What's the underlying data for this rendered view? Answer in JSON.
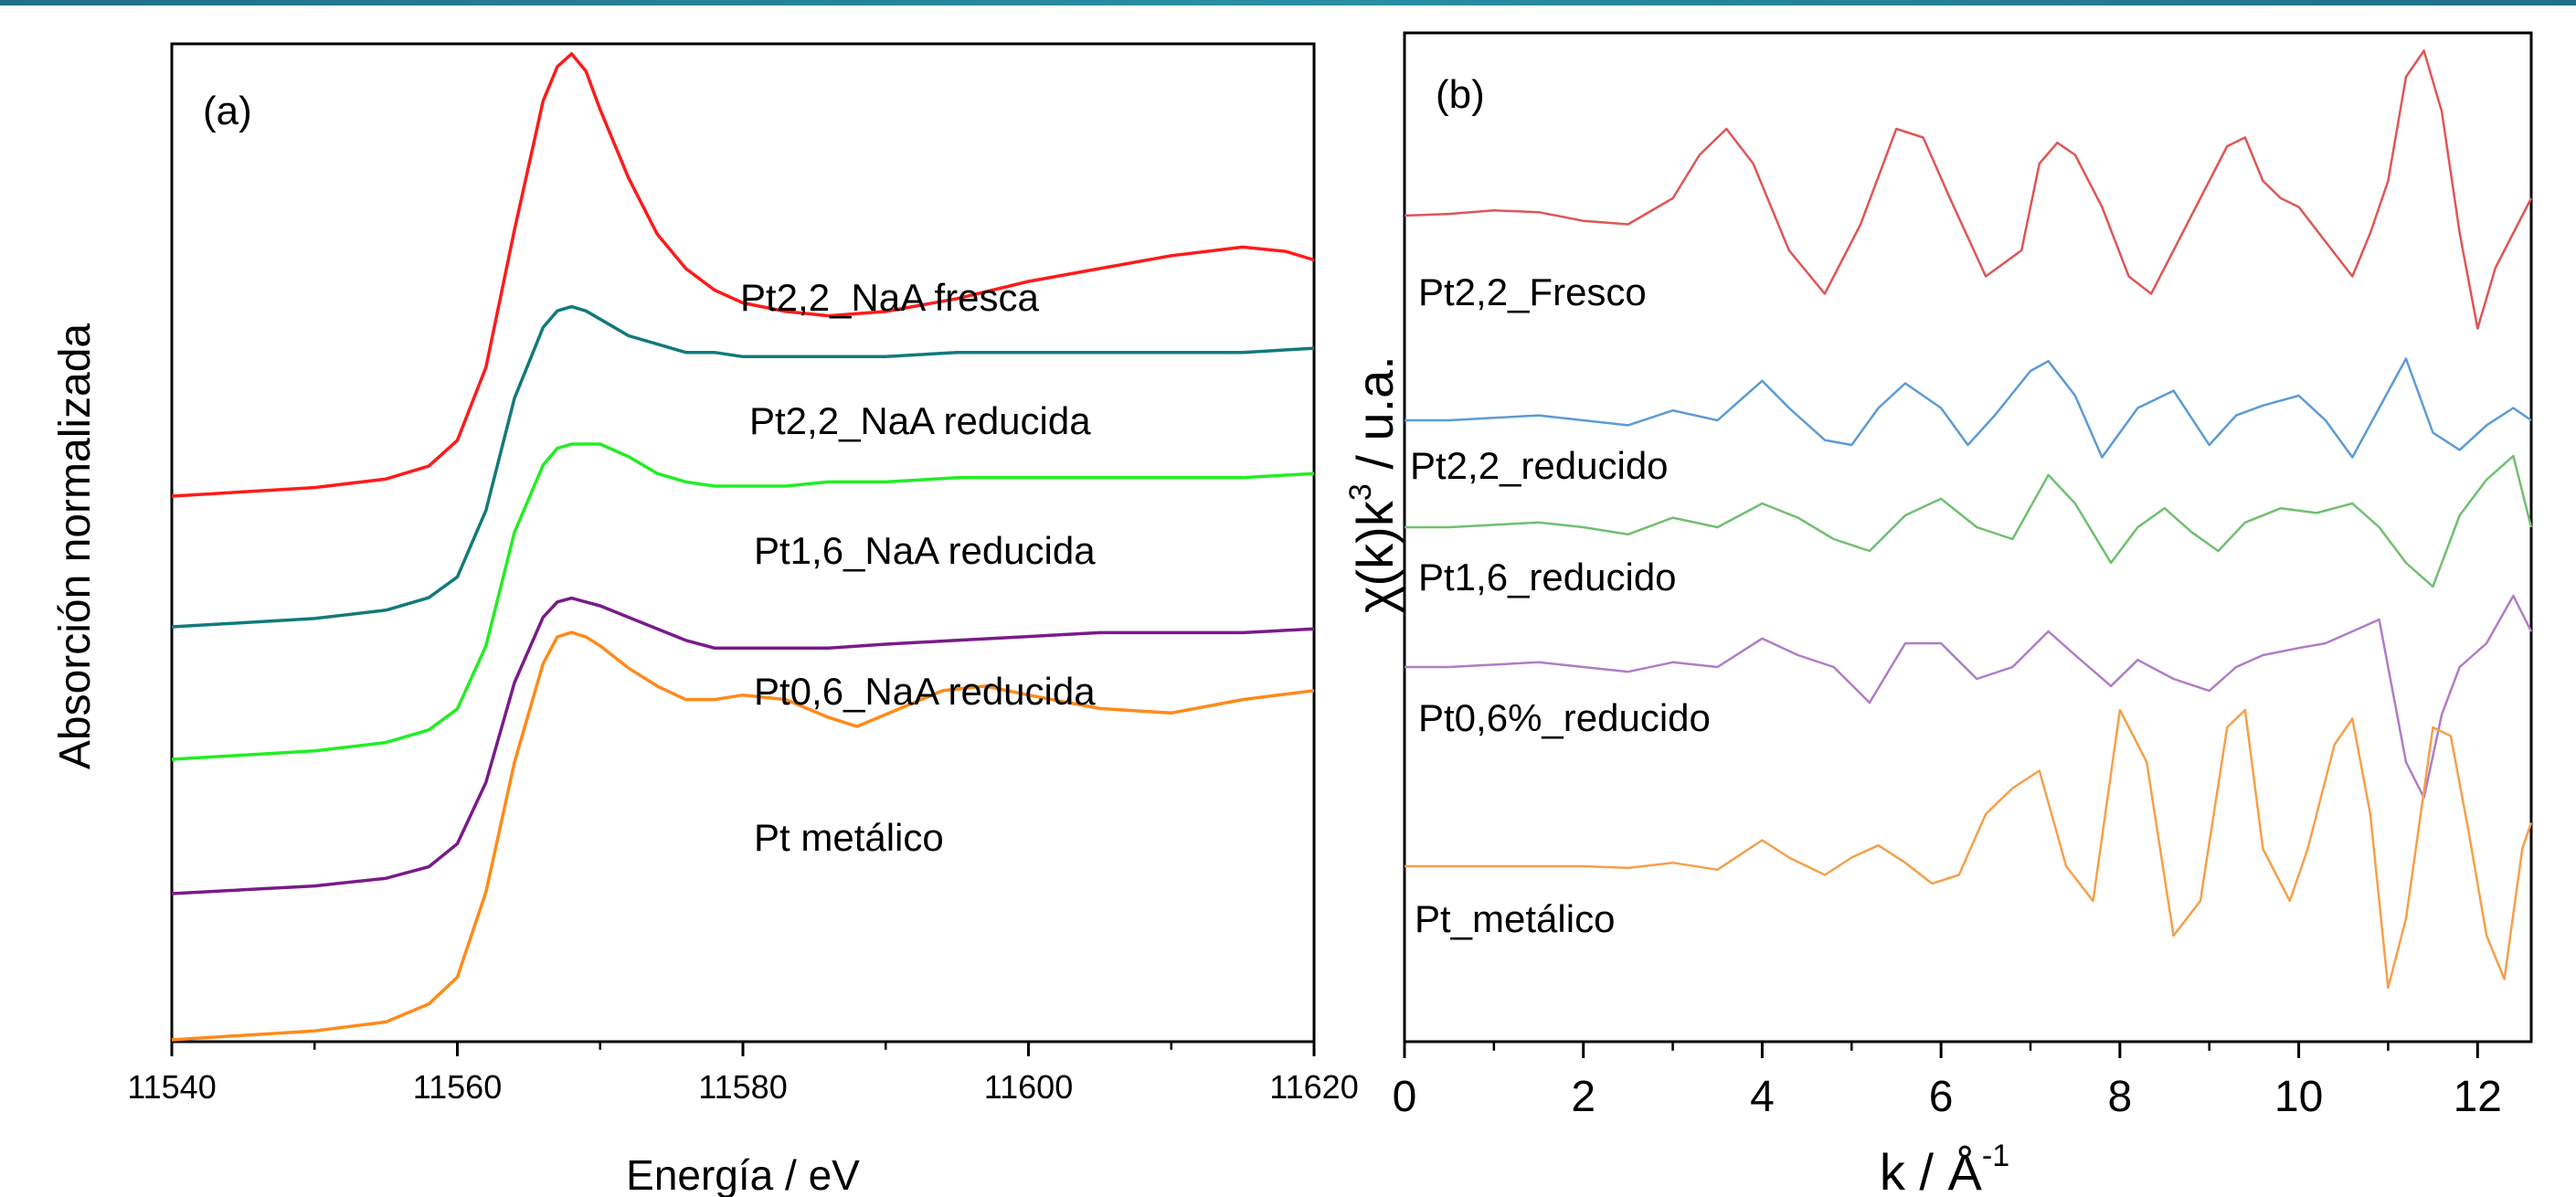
{
  "chart_data": [
    {
      "panel": "(a)",
      "type": "line",
      "xlabel": "Energía / eV",
      "ylabel": "Absorción normalizada",
      "xlim": [
        11540,
        11620
      ],
      "xticks": [
        11540,
        11560,
        11580,
        11600,
        11620
      ],
      "yticks_shown": false,
      "grid": false,
      "series": [
        {
          "name": "Pt2,2_NaA fresca",
          "color": "#ff1a1a",
          "x": [
            11540,
            11545,
            11550,
            11555,
            11558,
            11560,
            11562,
            11564,
            11566,
            11567,
            11568,
            11569,
            11570,
            11572,
            11574,
            11576,
            11578,
            11580,
            11583,
            11586,
            11590,
            11595,
            11600,
            11605,
            11610,
            11615,
            11618,
            11620
          ],
          "y": [
            0.0,
            0.01,
            0.02,
            0.04,
            0.07,
            0.13,
            0.3,
            0.62,
            0.92,
            1.0,
            1.03,
            0.99,
            0.9,
            0.74,
            0.61,
            0.53,
            0.48,
            0.45,
            0.43,
            0.42,
            0.43,
            0.46,
            0.5,
            0.53,
            0.56,
            0.58,
            0.57,
            0.55
          ]
        },
        {
          "name": "Pt2,2_NaA reducida",
          "color": "#127a7a",
          "x": [
            11540,
            11545,
            11550,
            11555,
            11558,
            11560,
            11562,
            11564,
            11566,
            11567,
            11568,
            11569,
            11570,
            11572,
            11574,
            11576,
            11578,
            11580,
            11583,
            11586,
            11590,
            11595,
            11600,
            11605,
            11610,
            11615,
            11620
          ],
          "y": [
            0.0,
            0.01,
            0.02,
            0.04,
            0.07,
            0.12,
            0.28,
            0.55,
            0.72,
            0.76,
            0.77,
            0.76,
            0.74,
            0.7,
            0.68,
            0.66,
            0.66,
            0.65,
            0.65,
            0.65,
            0.65,
            0.66,
            0.66,
            0.66,
            0.66,
            0.66,
            0.67
          ]
        },
        {
          "name": "Pt1,6_NaA reducida",
          "color": "#22ee22",
          "x": [
            11540,
            11545,
            11550,
            11555,
            11558,
            11560,
            11562,
            11564,
            11566,
            11567,
            11568,
            11569,
            11570,
            11572,
            11574,
            11576,
            11578,
            11580,
            11583,
            11586,
            11590,
            11595,
            11600,
            11605,
            11610,
            11615,
            11620
          ],
          "y": [
            0.0,
            0.01,
            0.02,
            0.04,
            0.07,
            0.12,
            0.27,
            0.54,
            0.7,
            0.74,
            0.75,
            0.75,
            0.75,
            0.72,
            0.68,
            0.66,
            0.65,
            0.65,
            0.65,
            0.66,
            0.66,
            0.67,
            0.67,
            0.67,
            0.67,
            0.67,
            0.68
          ]
        },
        {
          "name": "Pt0,6_NaA reducida",
          "color": "#7a1a8a",
          "x": [
            11540,
            11545,
            11550,
            11555,
            11558,
            11560,
            11562,
            11564,
            11566,
            11567,
            11568,
            11569,
            11570,
            11572,
            11574,
            11576,
            11578,
            11580,
            11583,
            11586,
            11590,
            11595,
            11600,
            11605,
            11610,
            11615,
            11620
          ],
          "y": [
            0.0,
            0.01,
            0.02,
            0.04,
            0.07,
            0.13,
            0.29,
            0.55,
            0.72,
            0.76,
            0.77,
            0.76,
            0.75,
            0.72,
            0.69,
            0.66,
            0.64,
            0.64,
            0.64,
            0.64,
            0.65,
            0.66,
            0.67,
            0.68,
            0.68,
            0.68,
            0.69
          ]
        },
        {
          "name": "Pt metálico",
          "color": "#ff8a1a",
          "x": [
            11540,
            11545,
            11550,
            11555,
            11558,
            11560,
            11562,
            11564,
            11566,
            11567,
            11568,
            11569,
            11570,
            11572,
            11574,
            11576,
            11578,
            11580,
            11583,
            11586,
            11588,
            11591,
            11594,
            11597,
            11600,
            11605,
            11610,
            11615,
            11620
          ],
          "y": [
            0.0,
            0.01,
            0.02,
            0.04,
            0.08,
            0.14,
            0.33,
            0.62,
            0.84,
            0.9,
            0.91,
            0.9,
            0.88,
            0.83,
            0.79,
            0.76,
            0.76,
            0.77,
            0.76,
            0.72,
            0.7,
            0.74,
            0.78,
            0.79,
            0.77,
            0.74,
            0.73,
            0.76,
            0.78
          ]
        }
      ]
    },
    {
      "panel": "(b)",
      "type": "line",
      "xlabel": "k / Å",
      "xlabel_superscript": "-1",
      "ylabel": "χ(k)k",
      "ylabel_superscript": "3",
      "ylabel_tail": " / u.a.",
      "xlim": [
        0,
        12.6
      ],
      "xticks": [
        0,
        2,
        4,
        6,
        8,
        10,
        12
      ],
      "yticks_shown": false,
      "grid": false,
      "series": [
        {
          "name": "Pt2,2_Fresco",
          "color": "#e05555",
          "x": [
            0.0,
            0.5,
            1.0,
            1.5,
            2.0,
            2.5,
            3.0,
            3.3,
            3.6,
            3.9,
            4.3,
            4.7,
            5.1,
            5.5,
            5.8,
            6.1,
            6.5,
            6.9,
            7.1,
            7.3,
            7.5,
            7.8,
            8.1,
            8.35,
            8.6,
            8.9,
            9.2,
            9.4,
            9.6,
            9.8,
            10.0,
            10.3,
            10.6,
            10.8,
            11.0,
            11.2,
            11.4,
            11.6,
            11.8,
            12.0,
            12.2,
            12.4,
            12.6
          ],
          "y": [
            0.0,
            0.01,
            0.03,
            0.02,
            -0.03,
            -0.05,
            0.1,
            0.35,
            0.5,
            0.3,
            -0.2,
            -0.45,
            -0.05,
            0.5,
            0.45,
            0.1,
            -0.35,
            -0.2,
            0.3,
            0.42,
            0.35,
            0.05,
            -0.35,
            -0.45,
            -0.2,
            0.1,
            0.4,
            0.45,
            0.2,
            0.1,
            0.05,
            -0.15,
            -0.35,
            -0.1,
            0.2,
            0.8,
            0.95,
            0.6,
            -0.1,
            -0.65,
            -0.3,
            -0.1,
            0.1
          ]
        },
        {
          "name": "Pt2,2_reducido",
          "color": "#5b9bd5",
          "x": [
            0.0,
            0.5,
            1.0,
            1.5,
            2.0,
            2.5,
            3.0,
            3.5,
            4.0,
            4.3,
            4.7,
            5.0,
            5.3,
            5.6,
            6.0,
            6.3,
            6.6,
            7.0,
            7.2,
            7.5,
            7.8,
            8.2,
            8.6,
            9.0,
            9.3,
            9.6,
            10.0,
            10.3,
            10.6,
            10.9,
            11.2,
            11.5,
            11.8,
            12.1,
            12.4,
            12.6
          ],
          "y": [
            0.0,
            0.0,
            0.01,
            0.02,
            0.0,
            -0.02,
            0.04,
            0.0,
            0.16,
            0.05,
            -0.08,
            -0.1,
            0.05,
            0.15,
            0.05,
            -0.1,
            0.02,
            0.2,
            0.24,
            0.1,
            -0.15,
            0.05,
            0.12,
            -0.1,
            0.02,
            0.06,
            0.1,
            0.0,
            -0.15,
            0.05,
            0.25,
            -0.05,
            -0.12,
            -0.02,
            0.05,
            0.0
          ]
        },
        {
          "name": "Pt1,6_reducido",
          "color": "#70bf70",
          "x": [
            0.0,
            0.5,
            1.0,
            1.5,
            2.0,
            2.5,
            3.0,
            3.5,
            4.0,
            4.4,
            4.8,
            5.2,
            5.6,
            6.0,
            6.4,
            6.8,
            7.2,
            7.5,
            7.9,
            8.2,
            8.5,
            8.8,
            9.1,
            9.4,
            9.8,
            10.2,
            10.6,
            10.9,
            11.2,
            11.5,
            11.8,
            12.1,
            12.4,
            12.6
          ],
          "y": [
            0.0,
            0.0,
            0.01,
            0.02,
            0.0,
            -0.03,
            0.04,
            0.0,
            0.1,
            0.04,
            -0.05,
            -0.1,
            0.05,
            0.12,
            0.0,
            -0.05,
            0.22,
            0.1,
            -0.15,
            0.0,
            0.08,
            -0.02,
            -0.1,
            0.02,
            0.08,
            0.06,
            0.1,
            0.0,
            -0.15,
            -0.25,
            0.05,
            0.2,
            0.3,
            0.0
          ]
        },
        {
          "name": "Pt0,6%_reducido",
          "color": "#b07cc6",
          "x": [
            0.0,
            0.5,
            1.0,
            1.5,
            2.0,
            2.5,
            3.0,
            3.5,
            4.0,
            4.4,
            4.8,
            5.2,
            5.6,
            6.0,
            6.4,
            6.8,
            7.2,
            7.5,
            7.9,
            8.2,
            8.6,
            9.0,
            9.3,
            9.6,
            10.0,
            10.3,
            10.6,
            10.9,
            11.2,
            11.4,
            11.6,
            11.8,
            12.1,
            12.4,
            12.6
          ],
          "y": [
            0.0,
            0.0,
            0.01,
            0.02,
            0.0,
            -0.02,
            0.02,
            0.0,
            0.12,
            0.05,
            0.0,
            -0.15,
            0.1,
            0.1,
            -0.05,
            0.0,
            0.15,
            0.05,
            -0.08,
            0.03,
            -0.05,
            -0.1,
            0.0,
            0.05,
            0.08,
            0.1,
            0.15,
            0.2,
            -0.4,
            -0.55,
            -0.2,
            0.0,
            0.1,
            0.3,
            0.15
          ]
        },
        {
          "name": "Pt_metálico",
          "color": "#f5a04a",
          "x": [
            0.0,
            0.5,
            1.0,
            1.5,
            2.0,
            2.5,
            3.0,
            3.5,
            4.0,
            4.3,
            4.7,
            5.0,
            5.3,
            5.6,
            5.9,
            6.2,
            6.5,
            6.8,
            7.1,
            7.4,
            7.7,
            8.0,
            8.3,
            8.6,
            8.9,
            9.2,
            9.4,
            9.6,
            9.9,
            10.1,
            10.4,
            10.6,
            10.8,
            11.0,
            11.2,
            11.5,
            11.7,
            11.9,
            12.1,
            12.3,
            12.5,
            12.6
          ],
          "y": [
            0.0,
            0.0,
            0.0,
            0.0,
            0.0,
            -0.01,
            0.02,
            -0.02,
            0.15,
            0.05,
            -0.05,
            0.05,
            0.12,
            0.02,
            -0.1,
            -0.05,
            0.3,
            0.45,
            0.55,
            0.0,
            -0.2,
            0.9,
            0.6,
            -0.4,
            -0.2,
            0.8,
            0.9,
            0.1,
            -0.2,
            0.1,
            0.7,
            0.85,
            0.3,
            -0.7,
            -0.3,
            0.8,
            0.75,
            0.2,
            -0.4,
            -0.65,
            0.1,
            0.25
          ]
        }
      ]
    }
  ],
  "labels": {
    "panel_a_tag": "(a)",
    "panel_b_tag": "(b)",
    "a_series": [
      "Pt2,2_NaA fresca",
      "Pt2,2_NaA reducida",
      "Pt1,6_NaA reducida",
      "Pt0,6_NaA reducida",
      "Pt metálico"
    ],
    "b_series": [
      "Pt2,2_Fresco",
      "Pt2,2_reducido",
      "Pt1,6_reducido",
      "Pt0,6%_reducido",
      "Pt_metálico"
    ]
  },
  "colors": {
    "header_bar": "#1f6f8b"
  }
}
